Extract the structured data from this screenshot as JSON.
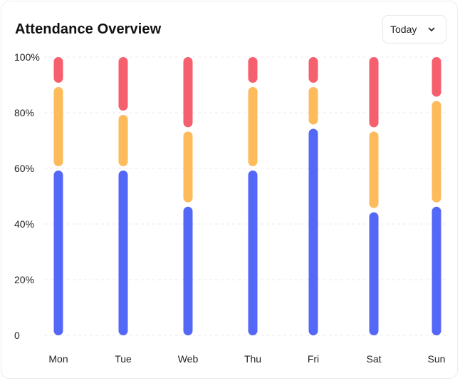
{
  "header": {
    "title": "Attendance Overview",
    "period_select": {
      "value": "Today",
      "icon": "chevron-down-icon"
    }
  },
  "colors": {
    "present": "#5468f7",
    "late": "#fdbb5c",
    "absent": "#f65f6d",
    "grid": "#ebebef"
  },
  "chart_data": {
    "type": "bar",
    "stacked": true,
    "categories": [
      "Mon",
      "Tue",
      "Web",
      "Thu",
      "Fri",
      "Sat",
      "Sun"
    ],
    "series": [
      {
        "values": [
          60,
          60,
          47,
          60,
          75,
          45,
          47
        ]
      },
      {
        "values": [
          30,
          20,
          27,
          30,
          15,
          29,
          38
        ]
      },
      {
        "values": [
          10,
          20,
          26,
          10,
          10,
          26,
          15
        ]
      }
    ],
    "ylim": [
      0,
      100
    ],
    "yticks": [
      {
        "value": 0,
        "label": "0"
      },
      {
        "value": 20,
        "label": "20%"
      },
      {
        "value": 40,
        "label": "40%"
      },
      {
        "value": 60,
        "label": "60%"
      },
      {
        "value": 80,
        "label": "80%"
      },
      {
        "value": 100,
        "label": "100%"
      }
    ],
    "grid": true,
    "legend": "none"
  }
}
